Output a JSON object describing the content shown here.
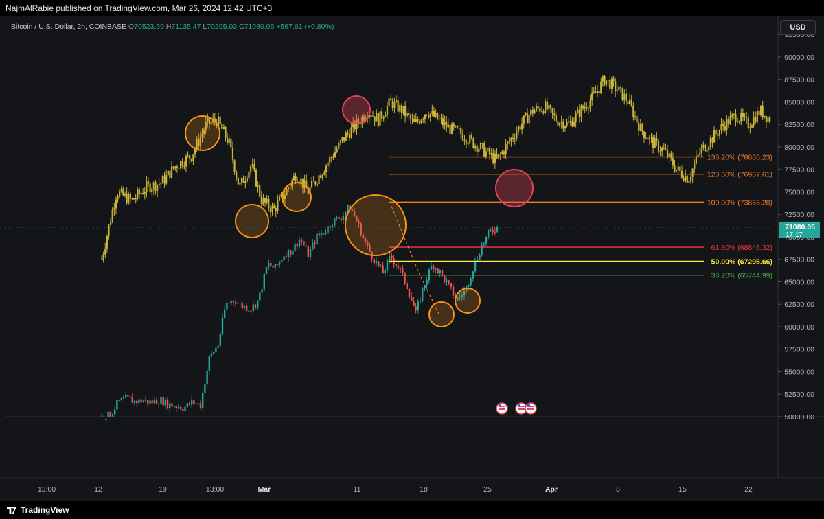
{
  "header": {
    "publisher_line": "NajmAlRabie published on TradingView.com, Mar 26, 2024 12:42 UTC+3"
  },
  "legend": {
    "symbol": "Bitcoin / U.S. Dollar, 2h, COINBASE",
    "o_label": "O",
    "o_value": "70523.59",
    "h_label": "H",
    "h_value": "71135.47",
    "l_label": "L",
    "l_value": "70295.03",
    "c_label": "C",
    "c_value": "71080.05",
    "change": "+567.61 (+0.80%)"
  },
  "currency_button": "USD",
  "footer": {
    "brand": "TradingView"
  },
  "colors": {
    "background": "#141519",
    "up": "#26a69a",
    "down": "#ef5350",
    "overlay": "#c9b53a",
    "circle_orange": "#f7931a",
    "circle_red": "#e04555",
    "fib_orange": "#f57c1f",
    "fib_red": "#f23645",
    "fib_yellow": "#ffeb3b",
    "fib_green": "#4caf50"
  },
  "icons": {
    "event_flags": "us-flag-icon"
  },
  "chart_data": {
    "type": "candlestick",
    "symbol": "BTCUSD",
    "interval": "2h",
    "x_tick_labels": [
      "13:00",
      "12",
      "19",
      "13:00",
      "Mar",
      "11",
      "18",
      "25",
      "Apr",
      "8",
      "15",
      "22"
    ],
    "y_ticks": [
      50000,
      52500,
      55000,
      57500,
      60000,
      62500,
      65000,
      67500,
      70000,
      72500,
      75000,
      77500,
      80000,
      82500,
      85000,
      87500,
      90000,
      92500
    ],
    "y_tick_labels": [
      "50000.00",
      "52500.00",
      "55000.00",
      "57500.00",
      "60000.00",
      "62500.00",
      "65000.00",
      "67500.00",
      "70000.00",
      "72500.00",
      "75000.00",
      "77500.00",
      "80000.00",
      "82500.00",
      "85000.00",
      "87500.00",
      "90000.00",
      "92500.00"
    ],
    "ylim": [
      50000,
      94500
    ],
    "last_price_label": "71080.05",
    "countdown_label": "17:17",
    "last_price": 71080.05,
    "price_path": [
      {
        "x": 0.0,
        "y": 49900
      },
      {
        "x": 0.8,
        "y": 50200
      },
      {
        "x": 1.5,
        "y": 51600
      },
      {
        "x": 2.3,
        "y": 52000
      },
      {
        "x": 3.0,
        "y": 51700
      },
      {
        "x": 3.8,
        "y": 51800
      },
      {
        "x": 4.5,
        "y": 51600
      },
      {
        "x": 5.3,
        "y": 51900
      },
      {
        "x": 6.0,
        "y": 51400
      },
      {
        "x": 6.8,
        "y": 51200
      },
      {
        "x": 7.5,
        "y": 51000
      },
      {
        "x": 8.3,
        "y": 51600
      },
      {
        "x": 9.0,
        "y": 51300
      },
      {
        "x": 9.8,
        "y": 56500
      },
      {
        "x": 10.6,
        "y": 58000
      },
      {
        "x": 11.3,
        "y": 62500
      },
      {
        "x": 12.1,
        "y": 63000
      },
      {
        "x": 12.8,
        "y": 62300
      },
      {
        "x": 13.6,
        "y": 62000
      },
      {
        "x": 14.3,
        "y": 63000
      },
      {
        "x": 15.1,
        "y": 67000
      },
      {
        "x": 15.8,
        "y": 66500
      },
      {
        "x": 16.6,
        "y": 68000
      },
      {
        "x": 17.3,
        "y": 68500
      },
      {
        "x": 18.1,
        "y": 69800
      },
      {
        "x": 18.8,
        "y": 68000
      },
      {
        "x": 19.6,
        "y": 70000
      },
      {
        "x": 20.3,
        "y": 70600
      },
      {
        "x": 21.1,
        "y": 71800
      },
      {
        "x": 21.8,
        "y": 72200
      },
      {
        "x": 22.6,
        "y": 73400
      },
      {
        "x": 23.3,
        "y": 71500
      },
      {
        "x": 24.1,
        "y": 69000
      },
      {
        "x": 24.8,
        "y": 67500
      },
      {
        "x": 25.6,
        "y": 66000
      },
      {
        "x": 26.3,
        "y": 67800
      },
      {
        "x": 27.1,
        "y": 66500
      },
      {
        "x": 27.8,
        "y": 64500
      },
      {
        "x": 28.6,
        "y": 61500
      },
      {
        "x": 29.3,
        "y": 64500
      },
      {
        "x": 30.1,
        "y": 67000
      },
      {
        "x": 30.8,
        "y": 66000
      },
      {
        "x": 31.6,
        "y": 64500
      },
      {
        "x": 32.3,
        "y": 63000
      },
      {
        "x": 33.1,
        "y": 64000
      },
      {
        "x": 33.8,
        "y": 66500
      },
      {
        "x": 34.6,
        "y": 69000
      },
      {
        "x": 35.3,
        "y": 70500
      },
      {
        "x": 36.0,
        "y": 71080
      }
    ],
    "overlay_series": {
      "color": "#c9b53a",
      "points": [
        {
          "x": 0.0,
          "y": 67500
        },
        {
          "x": 1.0,
          "y": 75000
        },
        {
          "x": 2.0,
          "y": 74000
        },
        {
          "x": 3.0,
          "y": 75500
        },
        {
          "x": 4.0,
          "y": 76000
        },
        {
          "x": 5.0,
          "y": 78000
        },
        {
          "x": 6.0,
          "y": 79000
        },
        {
          "x": 7.0,
          "y": 82500
        },
        {
          "x": 7.7,
          "y": 83000
        },
        {
          "x": 8.5,
          "y": 80500
        },
        {
          "x": 9.2,
          "y": 75500
        },
        {
          "x": 10.0,
          "y": 78000
        },
        {
          "x": 10.7,
          "y": 74000
        },
        {
          "x": 11.5,
          "y": 73000
        },
        {
          "x": 12.3,
          "y": 75000
        },
        {
          "x": 13.0,
          "y": 77000
        },
        {
          "x": 13.8,
          "y": 75000
        },
        {
          "x": 14.6,
          "y": 77000
        },
        {
          "x": 15.4,
          "y": 79000
        },
        {
          "x": 16.2,
          "y": 81000
        },
        {
          "x": 17.0,
          "y": 82500
        },
        {
          "x": 17.8,
          "y": 84000
        },
        {
          "x": 18.5,
          "y": 83000
        },
        {
          "x": 19.3,
          "y": 85000
        },
        {
          "x": 20.1,
          "y": 84000
        },
        {
          "x": 20.9,
          "y": 82500
        },
        {
          "x": 21.7,
          "y": 84000
        },
        {
          "x": 22.5,
          "y": 83000
        },
        {
          "x": 23.3,
          "y": 82000
        },
        {
          "x": 24.0,
          "y": 81500
        },
        {
          "x": 24.8,
          "y": 80500
        },
        {
          "x": 25.6,
          "y": 79500
        },
        {
          "x": 26.4,
          "y": 78500
        },
        {
          "x": 27.2,
          "y": 80500
        },
        {
          "x": 28.0,
          "y": 82500
        },
        {
          "x": 28.8,
          "y": 84000
        },
        {
          "x": 29.6,
          "y": 84500
        },
        {
          "x": 30.4,
          "y": 83000
        },
        {
          "x": 31.2,
          "y": 82500
        },
        {
          "x": 32.0,
          "y": 84000
        },
        {
          "x": 32.8,
          "y": 85500
        },
        {
          "x": 33.6,
          "y": 87500
        },
        {
          "x": 34.4,
          "y": 86500
        },
        {
          "x": 35.2,
          "y": 85000
        },
        {
          "x": 36.0,
          "y": 82000
        },
        {
          "x": 36.8,
          "y": 80500
        },
        {
          "x": 37.6,
          "y": 79500
        },
        {
          "x": 38.4,
          "y": 77500
        },
        {
          "x": 39.2,
          "y": 76500
        },
        {
          "x": 40.0,
          "y": 79500
        },
        {
          "x": 40.8,
          "y": 81000
        },
        {
          "x": 41.6,
          "y": 82500
        },
        {
          "x": 42.4,
          "y": 83500
        },
        {
          "x": 43.2,
          "y": 82500
        },
        {
          "x": 44.0,
          "y": 84000
        },
        {
          "x": 44.7,
          "y": 83000
        }
      ]
    },
    "fib_levels": [
      {
        "label": "138.20% (78886.23)",
        "price": 78886.23,
        "color": "#f57c1f"
      },
      {
        "label": "123.60% (76967.61)",
        "price": 76967.61,
        "color": "#f57c1f"
      },
      {
        "label": "100.00% (73866.28)",
        "price": 73866.28,
        "color": "#f57c1f"
      },
      {
        "label": "61.80% (68846.32)",
        "price": 68846.32,
        "color": "#f23645"
      },
      {
        "label": "50.00% (67295.66)",
        "price": 67295.66,
        "color": "#ffeb3b"
      },
      {
        "label": "38.20% (65744.99)",
        "price": 65744.99,
        "color": "#4caf50"
      }
    ],
    "highlight_circles": [
      {
        "kind": "orange",
        "x": 8.0,
        "y": 82500
      },
      {
        "kind": "orange",
        "x": 11.2,
        "y": 71500
      },
      {
        "kind": "orange",
        "x": 13.9,
        "y": 75000
      },
      {
        "kind": "red",
        "x": 16.9,
        "y": 86000
      },
      {
        "kind": "orange",
        "x": 22.7,
        "y": 70800
      },
      {
        "kind": "orange",
        "x": 27.3,
        "y": 61500
      },
      {
        "kind": "orange",
        "x": 30.0,
        "y": 63000
      },
      {
        "kind": "red",
        "x": 28.6,
        "y": 76500
      }
    ],
    "event_markers_x": [
      30.0,
      31.4,
      32.0
    ]
  }
}
